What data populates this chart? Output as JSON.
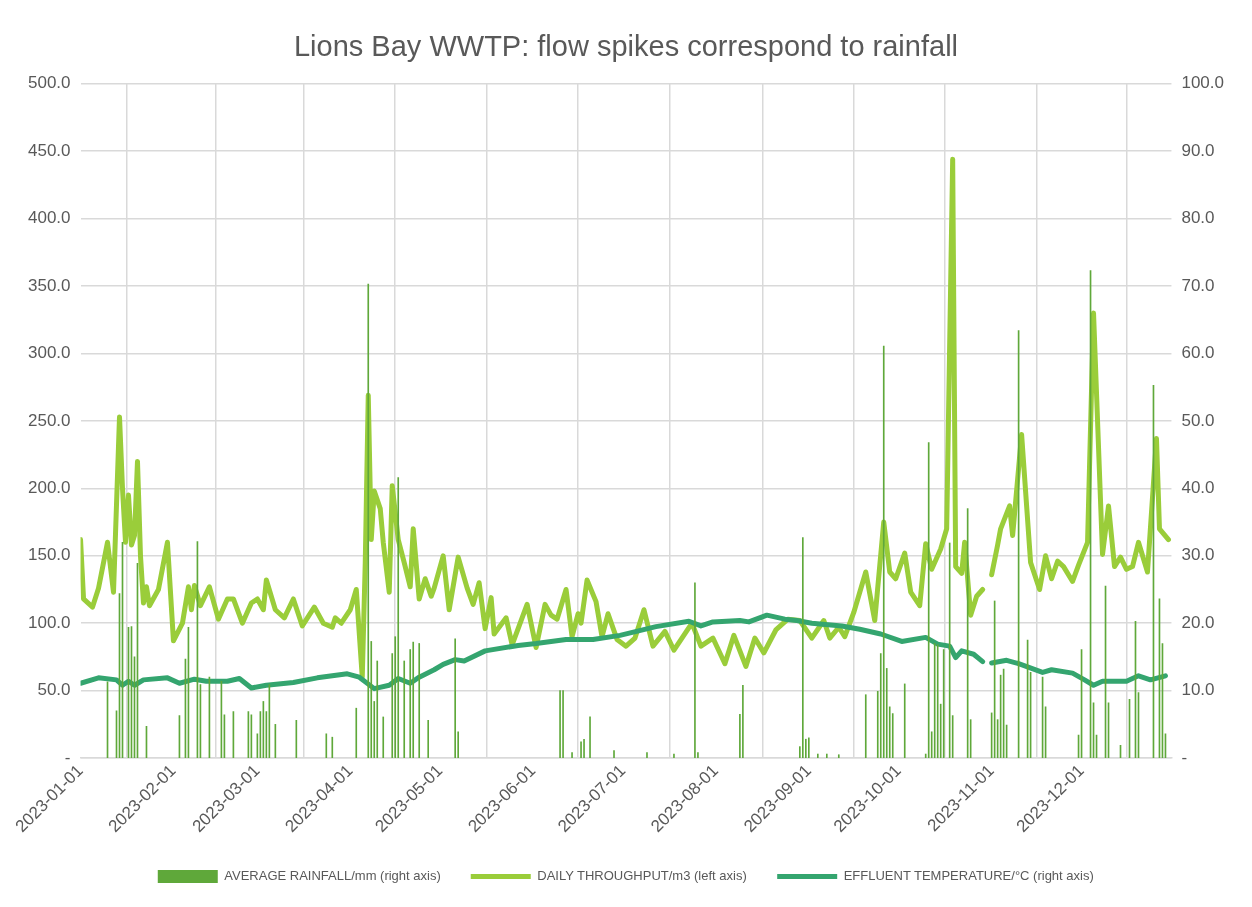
{
  "chart_data": {
    "type": "line",
    "title": "Lions Bay WWTP: flow spikes correspond to rainfall",
    "xlim": [
      "2023-01-01",
      "2023-12-31"
    ],
    "xticks": [
      "2023-01-01",
      "2023-02-01",
      "2023-03-01",
      "2023-04-01",
      "2023-05-01",
      "2023-06-01",
      "2023-07-01",
      "2023-08-01",
      "2023-09-01",
      "2023-10-01",
      "2023-11-01",
      "2023-12-01"
    ],
    "ylim": [
      0,
      500
    ],
    "yticks": [
      {
        "value": 0,
        "label": "-"
      },
      {
        "value": 50,
        "label": "50.0"
      },
      {
        "value": 100,
        "label": "100.0"
      },
      {
        "value": 150,
        "label": "150.0"
      },
      {
        "value": 200,
        "label": "200.0"
      },
      {
        "value": 250,
        "label": "250.0"
      },
      {
        "value": 300,
        "label": "300.0"
      },
      {
        "value": 350,
        "label": "350.0"
      },
      {
        "value": 400,
        "label": "400.0"
      },
      {
        "value": 450,
        "label": "450.0"
      },
      {
        "value": 500,
        "label": "500.0"
      }
    ],
    "y2lim": [
      0,
      100
    ],
    "y2ticks": [
      {
        "value": 0,
        "label": "-"
      },
      {
        "value": 10,
        "label": "10.0"
      },
      {
        "value": 20,
        "label": "20.0"
      },
      {
        "value": 30,
        "label": "30.0"
      },
      {
        "value": 40,
        "label": "40.0"
      },
      {
        "value": 50,
        "label": "50.0"
      },
      {
        "value": 60,
        "label": "60.0"
      },
      {
        "value": 70,
        "label": "70.0"
      },
      {
        "value": 80,
        "label": "80.0"
      },
      {
        "value": 90,
        "label": "90.0"
      },
      {
        "value": 100,
        "label": "100.0"
      }
    ],
    "grid": true,
    "legend": "bottom",
    "marker": "none",
    "line_style": "solid",
    "series": [
      {
        "type": "bar",
        "name": "AVERAGE RAINFALL/mm (right axis)",
        "color": "#5fa83a",
        "axis": "y2",
        "x": [
          "2023-01-10",
          "2023-01-13",
          "2023-01-14",
          "2023-01-15",
          "2023-01-17",
          "2023-01-18",
          "2023-01-19",
          "2023-01-20",
          "2023-01-23",
          "2023-02-03",
          "2023-02-05",
          "2023-02-06",
          "2023-02-09",
          "2023-02-10",
          "2023-02-13",
          "2023-02-17",
          "2023-02-18",
          "2023-02-21",
          "2023-02-26",
          "2023-02-27",
          "2023-03-01",
          "2023-03-02",
          "2023-03-03",
          "2023-03-04",
          "2023-03-05",
          "2023-03-07",
          "2023-03-14",
          "2023-03-24",
          "2023-03-26",
          "2023-04-03",
          "2023-04-07",
          "2023-04-08",
          "2023-04-09",
          "2023-04-10",
          "2023-04-12",
          "2023-04-15",
          "2023-04-16",
          "2023-04-17",
          "2023-04-19",
          "2023-04-21",
          "2023-04-22",
          "2023-04-24",
          "2023-04-27",
          "2023-05-06",
          "2023-05-07",
          "2023-06-10",
          "2023-06-11",
          "2023-06-14",
          "2023-06-17",
          "2023-06-18",
          "2023-06-20",
          "2023-06-28",
          "2023-07-09",
          "2023-07-18",
          "2023-07-25",
          "2023-07-26",
          "2023-08-09",
          "2023-08-10",
          "2023-08-29",
          "2023-08-30",
          "2023-08-31",
          "2023-09-01",
          "2023-09-04",
          "2023-09-07",
          "2023-09-11",
          "2023-09-20",
          "2023-09-24",
          "2023-09-25",
          "2023-09-26",
          "2023-09-27",
          "2023-09-28",
          "2023-09-29",
          "2023-10-03",
          "2023-10-10",
          "2023-10-11",
          "2023-10-12",
          "2023-10-13",
          "2023-10-14",
          "2023-10-15",
          "2023-10-16",
          "2023-10-18",
          "2023-10-19",
          "2023-10-24",
          "2023-10-25",
          "2023-11-01",
          "2023-11-02",
          "2023-11-03",
          "2023-11-04",
          "2023-11-05",
          "2023-11-06",
          "2023-11-10",
          "2023-11-13",
          "2023-11-14",
          "2023-11-18",
          "2023-11-19",
          "2023-11-30",
          "2023-12-01",
          "2023-12-04",
          "2023-12-05",
          "2023-12-06",
          "2023-12-09",
          "2023-12-10",
          "2023-12-14",
          "2023-12-17",
          "2023-12-19",
          "2023-12-20",
          "2023-12-25",
          "2023-12-27",
          "2023-12-28",
          "2023-12-29"
        ],
        "values": [
          11.3,
          7,
          24.4,
          32,
          19.4,
          19.5,
          15,
          28.9,
          4.7,
          6.3,
          14.7,
          19.4,
          32.1,
          10.9,
          12,
          11.4,
          6.4,
          6.9,
          6.9,
          6.4,
          3.6,
          6.9,
          8.4,
          6.9,
          10.9,
          5,
          5.6,
          3.6,
          3.1,
          7.4,
          70.3,
          17.3,
          8.4,
          14.4,
          6.1,
          15.5,
          18,
          41.6,
          14.4,
          16.1,
          17.2,
          17,
          5.6,
          17.7,
          3.9,
          10,
          10,
          0.8,
          2.4,
          2.8,
          6.1,
          1.1,
          0.8,
          0.6,
          26,
          0.8,
          6.5,
          10.8,
          1.7,
          32.7,
          2.8,
          3,
          0.6,
          0.6,
          0.5,
          9.4,
          9.9,
          15.5,
          61.1,
          13.3,
          7.6,
          6.6,
          11,
          0.6,
          46.8,
          3.9,
          17,
          16.8,
          8,
          16.1,
          31.9,
          6.3,
          37,
          5.7,
          6.7,
          23.3,
          5.7,
          12.3,
          13.2,
          4.9,
          63.4,
          17.5,
          12.7,
          12,
          7.6,
          3.4,
          16.1,
          72.3,
          8.2,
          3.4,
          25.5,
          8.2,
          1.9,
          8.7,
          20.3,
          9.7,
          55.3,
          23.6,
          17,
          3.6
        ]
      },
      {
        "name": "DAILY THROUGHPUT/m3 (left axis)",
        "color": "#9acd3a",
        "x": [
          "2023-01-01",
          "2023-01-02",
          "2023-01-05",
          "2023-01-07",
          "2023-01-10",
          "2023-01-12",
          "2023-01-14",
          "2023-01-15",
          "2023-01-16",
          "2023-01-17",
          "2023-01-18",
          "2023-01-19",
          "2023-01-20",
          "2023-01-21",
          "2023-01-22",
          "2023-01-23",
          "2023-01-24",
          "2023-01-27",
          "2023-01-30",
          "2023-02-01",
          "2023-02-04",
          "2023-02-06",
          "2023-02-07",
          "2023-02-08",
          "2023-02-10",
          "2023-02-13",
          "2023-02-16",
          "2023-02-19",
          "2023-02-21",
          "2023-02-24",
          "2023-02-27",
          "2023-03-01",
          "2023-03-03",
          "2023-03-04",
          "2023-03-07",
          "2023-03-10",
          "2023-03-13",
          "2023-03-16",
          "2023-03-20",
          "2023-03-23",
          "2023-03-26",
          "2023-03-27",
          "2023-03-29",
          "2023-04-01",
          "2023-04-03",
          "2023-04-05",
          "2023-04-06",
          "2023-04-07",
          "2023-04-08",
          "2023-04-09",
          "2023-04-11",
          "2023-04-12",
          "2023-04-14",
          "2023-04-15",
          "2023-04-17",
          "2023-04-19",
          "2023-04-21",
          "2023-04-22",
          "2023-04-24",
          "2023-04-26",
          "2023-04-28",
          "2023-04-29",
          "2023-05-02",
          "2023-05-04",
          "2023-05-07",
          "2023-05-10",
          "2023-05-12",
          "2023-05-14",
          "2023-05-16",
          "2023-05-18",
          "2023-05-19",
          "2023-05-23",
          "2023-05-25",
          "2023-05-30",
          "2023-06-02",
          "2023-06-05",
          "2023-06-07",
          "2023-06-09",
          "2023-06-12",
          "2023-06-14",
          "2023-06-16",
          "2023-06-17",
          "2023-06-19",
          "2023-06-22",
          "2023-06-24",
          "2023-06-26",
          "2023-06-29",
          "2023-07-02",
          "2023-07-05",
          "2023-07-08",
          "2023-07-11",
          "2023-07-15",
          "2023-07-18",
          "2023-07-24",
          "2023-07-27",
          "2023-07-31",
          "2023-08-04",
          "2023-08-07",
          "2023-08-11",
          "2023-08-14",
          "2023-08-17",
          "2023-08-21",
          "2023-08-25",
          "2023-08-29",
          "2023-09-02",
          "2023-09-06",
          "2023-09-08",
          "2023-09-11",
          "2023-09-13",
          "2023-09-16",
          "2023-09-20",
          "2023-09-23",
          "2023-09-26",
          "2023-09-28",
          "2023-09-30",
          "2023-10-03",
          "2023-10-05",
          "2023-10-08",
          "2023-10-10",
          "2023-10-12",
          "2023-10-15",
          "2023-10-17",
          "2023-10-19",
          "2023-10-20",
          "2023-10-22",
          "2023-10-23",
          "2023-10-25",
          "2023-10-27",
          "2023-10-29",
          "2023-10-31",
          "2023-11-01",
          "2023-11-03",
          "2023-11-04",
          "2023-11-07",
          "2023-11-08",
          "2023-11-11",
          "2023-11-14",
          "2023-11-17",
          "2023-11-19",
          "2023-11-21",
          "2023-11-23",
          "2023-11-25",
          "2023-11-28",
          "2023-11-30",
          "2023-12-03",
          "2023-12-05",
          "2023-12-08",
          "2023-12-10",
          "2023-12-12",
          "2023-12-14",
          "2023-12-16",
          "2023-12-18",
          "2023-12-20",
          "2023-12-23",
          "2023-12-26",
          "2023-12-27",
          "2023-12-30"
        ],
        "values": [
          162,
          118,
          112,
          126,
          160,
          123,
          253,
          200,
          160,
          195,
          158,
          165,
          220,
          150,
          115,
          127,
          113,
          125,
          160,
          87,
          100,
          127,
          110,
          128,
          113,
          127,
          103,
          118,
          118,
          100,
          115,
          118,
          110,
          132,
          110,
          104,
          118,
          98,
          112,
          100,
          97,
          104,
          100,
          110,
          125,
          60,
          145,
          269,
          162,
          198,
          185,
          160,
          123,
          202,
          162,
          145,
          127,
          170,
          118,
          133,
          120,
          126,
          150,
          110,
          149,
          126,
          114,
          130,
          96,
          119,
          92,
          104,
          84,
          114,
          82,
          114,
          106,
          103,
          125,
          90,
          107,
          100,
          132,
          116,
          90,
          107,
          88,
          83,
          89,
          110,
          83,
          94,
          80,
          100,
          83,
          89,
          70,
          91,
          68,
          89,
          78,
          95,
          103,
          102,
          89,
          102,
          89,
          97,
          90,
          108,
          138,
          102,
          175,
          138,
          133,
          152,
          123,
          113,
          159,
          140,
          155,
          170,
          444,
          142,
          137,
          160,
          106,
          120,
          125,
          null,
          136,
          158,
          170,
          187,
          165,
          240,
          145,
          125,
          150,
          133,
          146,
          142,
          131,
          143,
          160,
          330,
          151,
          187,
          142,
          149,
          140,
          142,
          160,
          138,
          237,
          170,
          162
        ]
      },
      {
        "name": "EFFLUENT TEMPERATURE/°C (right axis)",
        "color": "#34a56f",
        "axis": "y2",
        "x": [
          "2023-01-01",
          "2023-01-07",
          "2023-01-13",
          "2023-01-15",
          "2023-01-17",
          "2023-01-19",
          "2023-01-22",
          "2023-01-30",
          "2023-02-03",
          "2023-02-08",
          "2023-02-12",
          "2023-02-19",
          "2023-02-23",
          "2023-02-27",
          "2023-03-04",
          "2023-03-13",
          "2023-03-21",
          "2023-03-31",
          "2023-04-04",
          "2023-04-09",
          "2023-04-14",
          "2023-04-17",
          "2023-04-21",
          "2023-04-24",
          "2023-04-29",
          "2023-05-02",
          "2023-05-06",
          "2023-05-09",
          "2023-05-16",
          "2023-05-27",
          "2023-06-02",
          "2023-06-12",
          "2023-06-21",
          "2023-06-30",
          "2023-07-12",
          "2023-07-23",
          "2023-07-27",
          "2023-07-31",
          "2023-08-09",
          "2023-08-12",
          "2023-08-18",
          "2023-08-24",
          "2023-08-28",
          "2023-09-02",
          "2023-09-12",
          "2023-09-18",
          "2023-09-25",
          "2023-10-02",
          "2023-10-10",
          "2023-10-14",
          "2023-10-18",
          "2023-10-20",
          "2023-10-22",
          "2023-10-26",
          "2023-10-29",
          "2023-10-31",
          "2023-11-01",
          "2023-11-06",
          "2023-11-10",
          "2023-11-18",
          "2023-11-21",
          "2023-11-28",
          "2023-12-02",
          "2023-12-05",
          "2023-12-08",
          "2023-12-16",
          "2023-12-20",
          "2023-12-24",
          "2023-12-29"
        ],
        "values": [
          11.1,
          11.9,
          11.6,
          10.8,
          11.4,
          10.8,
          11.6,
          11.9,
          11.1,
          11.7,
          11.4,
          11.4,
          11.8,
          10.4,
          10.8,
          11.2,
          11.9,
          12.5,
          12.0,
          10.3,
          10.8,
          11.8,
          11.1,
          12.0,
          13.1,
          13.9,
          14.6,
          14.4,
          15.9,
          16.7,
          17.0,
          17.6,
          17.6,
          18.2,
          19.5,
          20.3,
          19.6,
          20.2,
          20.4,
          20.2,
          21.2,
          20.6,
          20.4,
          20.0,
          19.6,
          19.1,
          18.4,
          17.3,
          17.9,
          16.9,
          16.6,
          14.9,
          15.9,
          15.4,
          14.3,
          null,
          14.1,
          14.5,
          14.0,
          12.7,
          13.1,
          12.6,
          11.6,
          10.8,
          11.4,
          11.4,
          12.2,
          11.6,
          12.2
        ]
      }
    ]
  }
}
